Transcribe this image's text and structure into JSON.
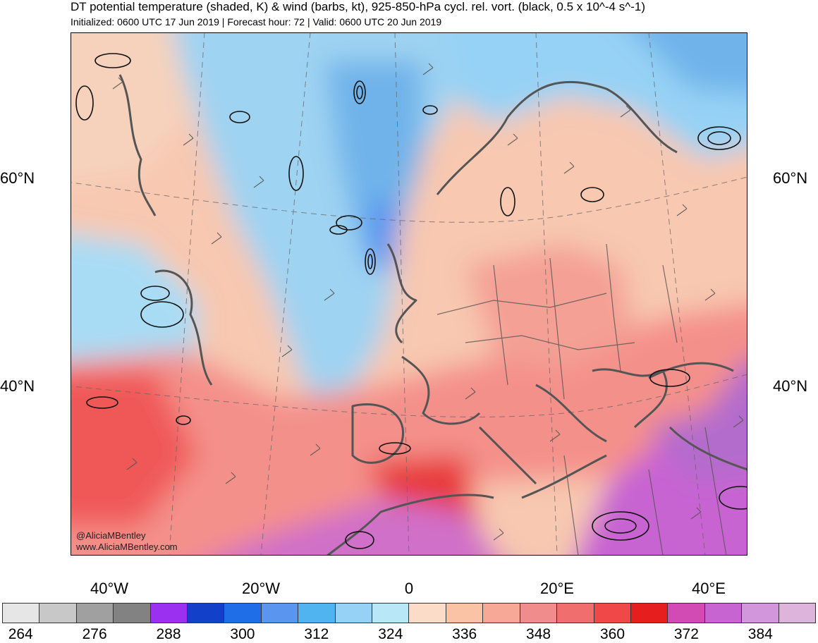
{
  "title": "DT potential temperature (shaded, K) & wind (barbs, kt), 925-850-hPa cycl. rel. vort. (black, 0.5 x 10^-4 s^-1)",
  "subtitle": "Initialized: 0600 UTC 17 Jun 2019 | Forecast hour: 72 | Valid: 0600 UTC 20 Jun 2019",
  "lat_labels": {
    "n60_left": "60°N",
    "n60_right": "60°N",
    "n40_left": "40°N",
    "n40_right": "40°N"
  },
  "lon_labels": {
    "w40": "40°W",
    "w20": "20°W",
    "zero": "0",
    "e20": "20°E",
    "e40": "40°E"
  },
  "colorbar": {
    "colors": [
      "#e6e6e6",
      "#c8c8c8",
      "#a0a0a0",
      "#828282",
      "#9b30f0",
      "#1240c8",
      "#1f6ee8",
      "#5a96f0",
      "#50b4f0",
      "#96d2f5",
      "#b8e8f8",
      "#fadcc8",
      "#fac3a5",
      "#f8a896",
      "#f08c8c",
      "#f06e6e",
      "#f04848",
      "#e61e1e",
      "#d24bb4",
      "#c864d2",
      "#d296dc",
      "#dcb4dc"
    ],
    "labels": [
      "264",
      "276",
      "288",
      "300",
      "312",
      "324",
      "336",
      "348",
      "360",
      "372",
      "384"
    ]
  },
  "credits": {
    "handle": "@AliciaMBentley",
    "website": "www.AliciaMBentley.com"
  }
}
